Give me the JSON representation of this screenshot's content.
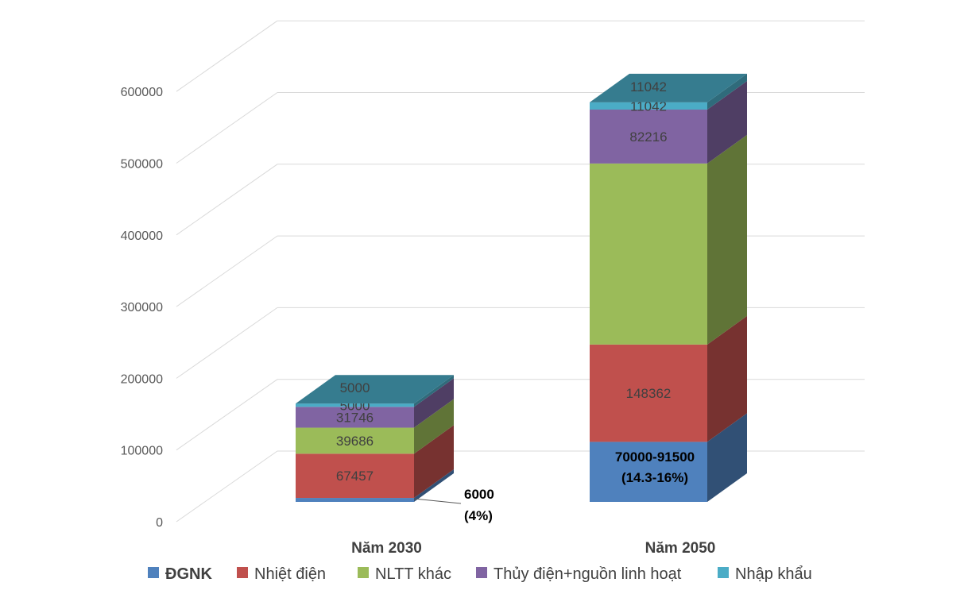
{
  "chart_data": {
    "type": "bar",
    "stacked": true,
    "three_d": true,
    "categories": [
      "Năm  2030",
      "Năm 2050"
    ],
    "y_ticks": [
      "0",
      "100000",
      "200000",
      "300000",
      "400000",
      "500000",
      "600000"
    ],
    "ylim": [
      0,
      700000
    ],
    "grid": true,
    "legend_position": "bottom",
    "series": [
      {
        "name": "ĐGNK",
        "color": "#4F81BD",
        "values": [
          6000,
          91500
        ],
        "labels": [
          "",
          ""
        ]
      },
      {
        "name": "Nhiệt điện",
        "color": "#C0504D",
        "values": [
          67457,
          148362
        ],
        "labels": [
          "67457",
          "148362"
        ]
      },
      {
        "name": "NLTT khác",
        "color": "#9BBB59",
        "values": [
          39686,
          276000
        ],
        "labels": [
          "39686",
          ""
        ]
      },
      {
        "name": "Thủy điện+nguồn linh hoạt",
        "color": "#8064A2",
        "values": [
          31746,
          82216
        ],
        "labels": [
          "31746",
          "82216"
        ]
      },
      {
        "name": "Nhập khẩu",
        "color": "#4BACC6",
        "values": [
          5000,
          11042
        ],
        "labels": [
          "5000",
          "11042"
        ]
      }
    ],
    "annotations": [
      {
        "category": "Năm  2030",
        "series": "ĐGNK",
        "line1": "6000",
        "line2": "(4%)"
      },
      {
        "category": "Năm 2050",
        "series": "ĐGNK",
        "line1": "70000-91500",
        "line2": "(14.3-16%)"
      }
    ]
  }
}
